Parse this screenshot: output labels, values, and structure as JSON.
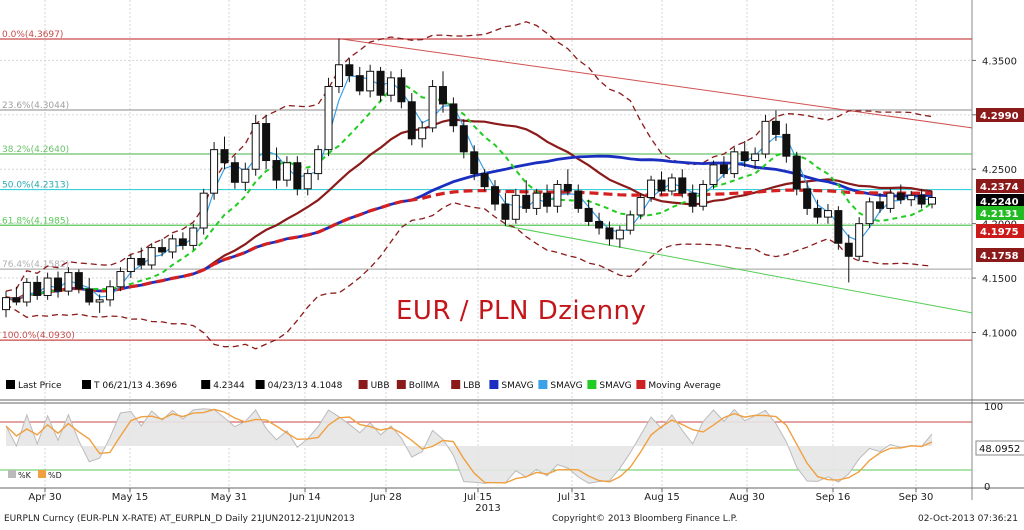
{
  "title": "EUR / PLN Dzienny",
  "footer": {
    "left": "EURPLN Curncy (EUR-PLN X-RATE) AT_EURPLN_D  Daily 21JUN2012-21JUN2013",
    "center": "Copyright© 2013 Bloomberg Finance L.P.",
    "right": "02-Oct-2013 07:36:21"
  },
  "legend": [
    {
      "text": "Last Price",
      "color": "#000000"
    },
    {
      "text": "T  06/21/13 4.3696",
      "color": "#000000"
    },
    {
      "text": "4.2344",
      "color": "#000000"
    },
    {
      "text": "04/23/13 4.1048",
      "color": "#000000"
    },
    {
      "text": "UBB",
      "color": "#8b1a1a"
    },
    {
      "text": "BollMA",
      "color": "#8b1a1a"
    },
    {
      "text": "LBB",
      "color": "#8b1a1a"
    },
    {
      "text": "SMAVG",
      "color": "#1a2fc0"
    },
    {
      "text": "SMAVG",
      "color": "#3aa0e8"
    },
    {
      "text": "SMAVG",
      "color": "#22cc22"
    },
    {
      "text": "Moving Average",
      "color": "#cc2222"
    }
  ],
  "osc_legend": [
    {
      "text": "%K",
      "color": "#bbbbbb"
    },
    {
      "text": "%D",
      "color": "#f0a040"
    }
  ],
  "chart_data": {
    "type": "candlestick",
    "x_ticks": [
      "Apr 30",
      "May 15",
      "May 31",
      "Jun 14",
      "Jun 28",
      "Jul 15",
      "Jul 31",
      "Aug 15",
      "Aug 30",
      "Sep 16",
      "Sep 30"
    ],
    "year_label": "2013",
    "ylim": [
      4.06,
      4.4
    ],
    "y_ticks": [
      "4.1000",
      "4.1500",
      "4.2000",
      "4.2500",
      "4.3000",
      "4.3500"
    ],
    "fib_levels": [
      {
        "label": "0.0%(4.3697)",
        "value": 4.3697
      },
      {
        "label": "23.6%(4.3044)",
        "value": 4.3044
      },
      {
        "label": "38.2%(4.2640)",
        "value": 4.264
      },
      {
        "label": "50.0%(4.2313)",
        "value": 4.2313
      },
      {
        "label": "61.8%(4.1985)",
        "value": 4.1985
      },
      {
        "label": "76.4%(4.1582)",
        "value": 4.1582
      },
      {
        "label": "100.0%(4.0930)",
        "value": 4.093
      }
    ],
    "price_tags": [
      {
        "text": "4.2990",
        "value": 4.299,
        "color": "#8b1a1a"
      },
      {
        "text": "4.2374",
        "value": 4.2374,
        "color": "#8b1a1a"
      },
      {
        "text": "4.2240",
        "value": 4.224,
        "color": "#000000"
      },
      {
        "text": "4.2131",
        "value": 4.2131,
        "color": "#22bb22"
      },
      {
        "text": "4.1975",
        "value": 4.1975,
        "color": "#cc1a1a"
      },
      {
        "text": "4.1758",
        "value": 4.1758,
        "color": "#8b1a1a"
      }
    ],
    "candles": [
      [
        4.121,
        4.138,
        4.114,
        4.132
      ],
      [
        4.132,
        4.142,
        4.125,
        4.128
      ],
      [
        4.128,
        4.15,
        4.124,
        4.146
      ],
      [
        4.146,
        4.152,
        4.13,
        4.134
      ],
      [
        4.134,
        4.155,
        4.13,
        4.15
      ],
      [
        4.15,
        4.156,
        4.132,
        4.138
      ],
      [
        4.138,
        4.16,
        4.134,
        4.155
      ],
      [
        4.155,
        4.158,
        4.136,
        4.14
      ],
      [
        4.14,
        4.15,
        4.125,
        4.128
      ],
      [
        4.128,
        4.135,
        4.118,
        4.13
      ],
      [
        4.13,
        4.148,
        4.124,
        4.142
      ],
      [
        4.142,
        4.16,
        4.138,
        4.156
      ],
      [
        4.156,
        4.172,
        4.15,
        4.168
      ],
      [
        4.168,
        4.178,
        4.158,
        4.162
      ],
      [
        4.162,
        4.182,
        4.158,
        4.178
      ],
      [
        4.178,
        4.186,
        4.17,
        4.174
      ],
      [
        4.174,
        4.19,
        4.168,
        4.186
      ],
      [
        4.186,
        4.192,
        4.176,
        4.18
      ],
      [
        4.18,
        4.2,
        4.176,
        4.196
      ],
      [
        4.196,
        4.232,
        4.19,
        4.228
      ],
      [
        4.228,
        4.275,
        4.222,
        4.268
      ],
      [
        4.268,
        4.28,
        4.25,
        4.256
      ],
      [
        4.256,
        4.262,
        4.232,
        4.238
      ],
      [
        4.238,
        4.256,
        4.23,
        4.25
      ],
      [
        4.25,
        4.3,
        4.244,
        4.292
      ],
      [
        4.292,
        4.3,
        4.25,
        4.258
      ],
      [
        4.258,
        4.27,
        4.232,
        4.24
      ],
      [
        4.24,
        4.262,
        4.234,
        4.256
      ],
      [
        4.256,
        4.262,
        4.226,
        4.232
      ],
      [
        4.232,
        4.25,
        4.226,
        4.246
      ],
      [
        4.246,
        4.272,
        4.24,
        4.268
      ],
      [
        4.268,
        4.334,
        4.262,
        4.326
      ],
      [
        4.326,
        4.37,
        4.32,
        4.346
      ],
      [
        4.346,
        4.352,
        4.33,
        4.336
      ],
      [
        4.336,
        4.344,
        4.318,
        4.322
      ],
      [
        4.322,
        4.346,
        4.316,
        4.34
      ],
      [
        4.34,
        4.344,
        4.312,
        4.318
      ],
      [
        4.318,
        4.34,
        4.312,
        4.334
      ],
      [
        4.334,
        4.342,
        4.306,
        4.312
      ],
      [
        4.312,
        4.32,
        4.272,
        4.278
      ],
      [
        4.278,
        4.294,
        4.27,
        4.288
      ],
      [
        4.288,
        4.332,
        4.284,
        4.326
      ],
      [
        4.326,
        4.34,
        4.302,
        4.31
      ],
      [
        4.31,
        4.316,
        4.284,
        4.29
      ],
      [
        4.29,
        4.296,
        4.26,
        4.266
      ],
      [
        4.266,
        4.272,
        4.24,
        4.246
      ],
      [
        4.246,
        4.25,
        4.23,
        4.234
      ],
      [
        4.234,
        4.24,
        4.212,
        4.218
      ],
      [
        4.218,
        4.228,
        4.198,
        4.204
      ],
      [
        4.204,
        4.232,
        4.2,
        4.226
      ],
      [
        4.226,
        4.24,
        4.21,
        4.214
      ],
      [
        4.214,
        4.232,
        4.208,
        4.228
      ],
      [
        4.228,
        4.236,
        4.21,
        4.216
      ],
      [
        4.216,
        4.24,
        4.21,
        4.236
      ],
      [
        4.236,
        4.25,
        4.226,
        4.23
      ],
      [
        4.23,
        4.236,
        4.21,
        4.214
      ],
      [
        4.214,
        4.222,
        4.198,
        4.202
      ],
      [
        4.202,
        4.21,
        4.19,
        4.196
      ],
      [
        4.196,
        4.202,
        4.18,
        4.186
      ],
      [
        4.186,
        4.198,
        4.178,
        4.194
      ],
      [
        4.194,
        4.212,
        4.19,
        4.208
      ],
      [
        4.208,
        4.228,
        4.204,
        4.224
      ],
      [
        4.224,
        4.244,
        4.22,
        4.24
      ],
      [
        4.24,
        4.248,
        4.226,
        4.23
      ],
      [
        4.23,
        4.246,
        4.226,
        4.242
      ],
      [
        4.242,
        4.25,
        4.224,
        4.228
      ],
      [
        4.228,
        4.236,
        4.21,
        4.216
      ],
      [
        4.216,
        4.24,
        4.212,
        4.236
      ],
      [
        4.236,
        4.258,
        4.232,
        4.254
      ],
      [
        4.254,
        4.262,
        4.242,
        4.246
      ],
      [
        4.246,
        4.27,
        4.242,
        4.266
      ],
      [
        4.266,
        4.276,
        4.252,
        4.258
      ],
      [
        4.258,
        4.27,
        4.25,
        4.264
      ],
      [
        4.264,
        4.3,
        4.26,
        4.294
      ],
      [
        4.294,
        4.304,
        4.276,
        4.282
      ],
      [
        4.282,
        4.292,
        4.256,
        4.262
      ],
      [
        4.262,
        4.266,
        4.226,
        4.232
      ],
      [
        4.232,
        4.238,
        4.208,
        4.214
      ],
      [
        4.214,
        4.222,
        4.2,
        4.206
      ],
      [
        4.206,
        4.218,
        4.2,
        4.212
      ],
      [
        4.212,
        4.216,
        4.176,
        4.182
      ],
      [
        4.182,
        4.19,
        4.146,
        4.17
      ],
      [
        4.17,
        4.206,
        4.166,
        4.2
      ],
      [
        4.2,
        4.224,
        4.196,
        4.22
      ],
      [
        4.22,
        4.228,
        4.21,
        4.214
      ],
      [
        4.214,
        4.232,
        4.21,
        4.228
      ],
      [
        4.228,
        4.236,
        4.218,
        4.222
      ],
      [
        4.222,
        4.23,
        4.216,
        4.226
      ],
      [
        4.226,
        4.232,
        4.214,
        4.218
      ],
      [
        4.218,
        4.23,
        4.214,
        4.224
      ]
    ],
    "oscillator": {
      "ylim": [
        0,
        100
      ],
      "y_ticks": [
        "0",
        "50",
        "100"
      ],
      "value_label": "48.0952",
      "levels": [
        80,
        20
      ]
    }
  }
}
